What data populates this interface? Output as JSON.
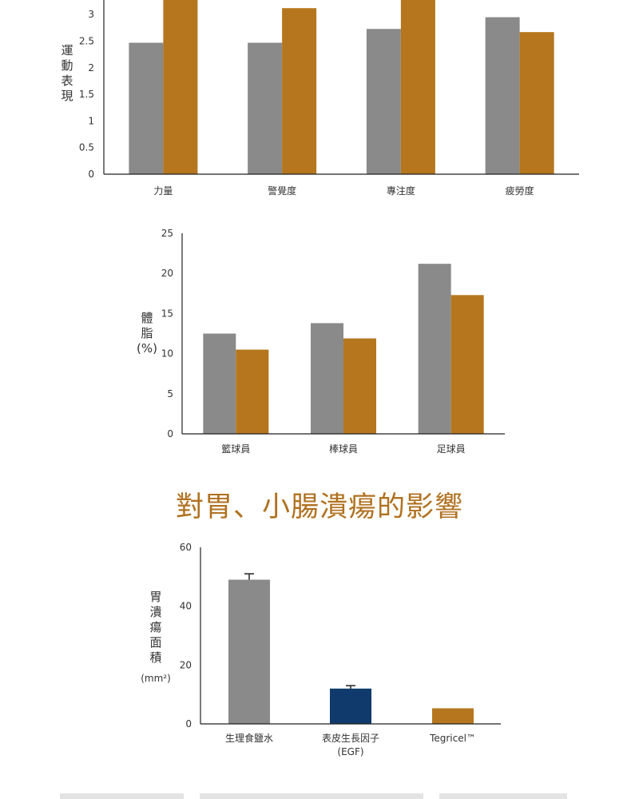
{
  "colors": {
    "gray": "#8a8a8a",
    "gold": "#b5761d",
    "navy": "#0f3a6b",
    "axis": "#222222",
    "heading": "#b0711f"
  },
  "heading": "對胃、小腸潰瘍的影響",
  "chart_data": [
    {
      "type": "bar",
      "ylabel": "運動表現",
      "categories": [
        "力量",
        "警覺度",
        "專注度",
        "疲勞度"
      ],
      "series": [
        {
          "values": [
            2.47,
            2.47,
            2.73,
            2.95
          ]
        },
        {
          "values": [
            3.4,
            3.12,
            3.4,
            2.67
          ]
        }
      ],
      "yticks": [
        "0",
        "0.5",
        "1",
        "1.5",
        "2",
        "2.5",
        "3"
      ],
      "ylim": [
        0,
        3.3
      ]
    },
    {
      "type": "bar",
      "ylabel": [
        "體",
        "脂",
        "(%)"
      ],
      "categories": [
        "籃球員",
        "棒球員",
        "足球員"
      ],
      "series": [
        {
          "values": [
            12.5,
            13.8,
            21.2
          ]
        },
        {
          "values": [
            10.5,
            11.9,
            17.3
          ]
        }
      ],
      "yticks": [
        "0",
        "5",
        "10",
        "15",
        "20",
        "25"
      ],
      "ylim": [
        0,
        25
      ]
    },
    {
      "type": "bar",
      "ylabel": [
        "胃",
        "潰",
        "瘍",
        "面",
        "積",
        "(mm²)"
      ],
      "categories": [
        "生理食鹽水",
        "表皮生長因子",
        "Tegricel™"
      ],
      "category_sub": [
        "",
        "(EGF)",
        ""
      ],
      "values": [
        49,
        12,
        5.3
      ],
      "errors": [
        2,
        1,
        0
      ],
      "bar_colors": [
        "#8a8a8a",
        "#0f3a6b",
        "#b5761d"
      ],
      "yticks": [
        "0",
        "20",
        "40",
        "60"
      ],
      "ylim": [
        0,
        60
      ]
    }
  ]
}
